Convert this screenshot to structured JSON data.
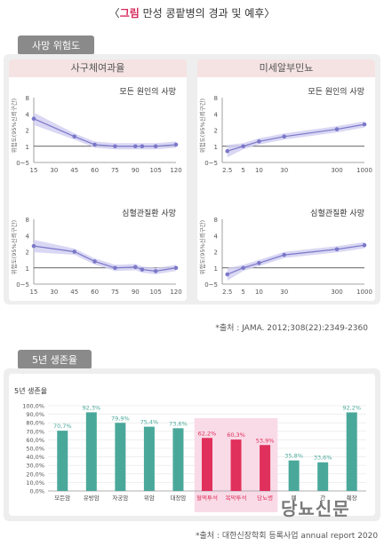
{
  "header": {
    "title_prefix": "〈",
    "title_accent": "그림",
    "title_main": "만성 콩팥병의 경과 및 예후〉"
  },
  "section1": {
    "tab": "사망 위험도",
    "source": "*출처 : JAMA. 2012;308(22):2349-2360"
  },
  "section2": {
    "tab": "5년 생존율",
    "source": "*출처 : 대한신장학회 등록사업 annual report 2020"
  },
  "watermark": "당뇨신문",
  "colors": {
    "line": "#7b78c9",
    "band": "#cfcdf0",
    "teal": "#4aa89a",
    "pink": "#e0305c",
    "highlight": "#f9dbe7"
  },
  "chart_data": [
    {
      "type": "line",
      "panel": "사구체여과율",
      "title": "모든 원인의 사망",
      "ylabel": "위험도(95%신뢰구간)",
      "x_ticks": [
        "15",
        "30",
        "45",
        "60",
        "75",
        "90",
        "105",
        "120"
      ],
      "x": [
        15,
        45,
        60,
        75,
        90,
        95,
        105,
        120
      ],
      "y": [
        3.4,
        1.6,
        1.1,
        1.0,
        1.0,
        1.0,
        1.0,
        1.1
      ],
      "ylim": [
        -5,
        8
      ],
      "y_ticks": [
        "8",
        "4",
        "2",
        "1",
        "0~5"
      ],
      "scale": "linear"
    },
    {
      "type": "line",
      "panel": "미세알부민뇨",
      "title": "모든 원인의 사망",
      "ylabel": "위험도(95%신뢰구간)",
      "x_ticks": [
        "2.5",
        "5",
        "10",
        "30",
        "300",
        "1000"
      ],
      "x": [
        2.5,
        5,
        10,
        30,
        300,
        1000
      ],
      "y": [
        0.7,
        1.0,
        1.3,
        1.6,
        2.1,
        2.7
      ],
      "ylim": [
        -5,
        8
      ],
      "y_ticks": [
        "8",
        "4",
        "2",
        "1",
        "0~5"
      ],
      "scale": "log"
    },
    {
      "type": "line",
      "panel": "사구체여과율",
      "title": "심혈관질환 사망",
      "ylabel": "위험도(95%신뢰구간)",
      "x_ticks": [
        "15",
        "30",
        "45",
        "60",
        "75",
        "90",
        "105",
        "120"
      ],
      "x": [
        15,
        45,
        60,
        75,
        90,
        95,
        105,
        120
      ],
      "y": [
        2.7,
        2.0,
        1.4,
        1.0,
        1.05,
        0.9,
        0.8,
        1.0
      ],
      "ylim": [
        -5,
        8
      ],
      "y_ticks": [
        "8",
        "4",
        "2",
        "1",
        "0~5"
      ],
      "scale": "linear"
    },
    {
      "type": "line",
      "panel": "미세알부민뇨",
      "title": "심혈관질환 사망",
      "ylabel": "위험도(95%신뢰구간)",
      "x_ticks": [
        "2.5",
        "5",
        "10",
        "30",
        "300",
        "1000"
      ],
      "x": [
        2.5,
        5,
        10,
        30,
        300,
        1000
      ],
      "y": [
        0.6,
        1.0,
        1.3,
        1.8,
        2.3,
        2.8
      ],
      "ylim": [
        -5,
        8
      ],
      "y_ticks": [
        "8",
        "4",
        "2",
        "1",
        "0~5"
      ],
      "scale": "log"
    },
    {
      "type": "bar",
      "title": "5년 생존율",
      "ylim": [
        0,
        100
      ],
      "y_ticks": [
        "100,0%",
        "90,0%",
        "80,0%",
        "70,0%",
        "60,0%",
        "50,0%",
        "40,0%",
        "30,0%",
        "20,0%",
        "10,0%",
        "0,0%"
      ],
      "categories": [
        "모든암",
        "유방암",
        "자궁암",
        "위암",
        "대장암",
        "혈액투석",
        "복막투석",
        "당뇨병",
        "폐",
        "간",
        "췌장"
      ],
      "values": [
        70.7,
        92.3,
        79.9,
        75.4,
        73.6,
        62.2,
        60.3,
        53.9,
        35.8,
        33.6,
        92.2
      ],
      "labels": [
        "70,7%",
        "92,3%",
        "79,9%",
        "75,4%",
        "73,6%",
        "62,2%",
        "60,3%",
        "53,9%",
        "35,8%",
        "33,6%",
        "92,2%"
      ],
      "highlight": [
        "혈액투석",
        "복막투석",
        "당뇨병"
      ]
    }
  ]
}
